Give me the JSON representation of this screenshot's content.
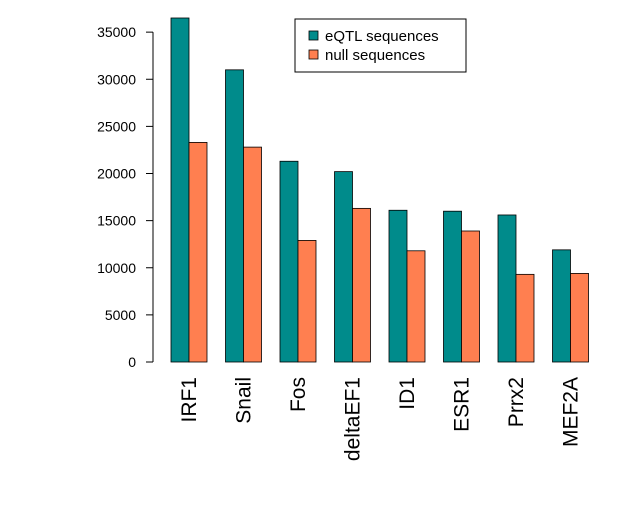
{
  "chart_data": {
    "type": "bar",
    "categories": [
      "IRF1",
      "Snail",
      "Fos",
      "deltaEF1",
      "ID1",
      "ESR1",
      "Prrx2",
      "MEF2A"
    ],
    "series": [
      {
        "name": "eQTL sequences",
        "color": "#008B8B",
        "values": [
          36500,
          31000,
          21300,
          20200,
          16100,
          16000,
          15600,
          11900
        ]
      },
      {
        "name": "null sequences",
        "color": "#FF7F50",
        "values": [
          23300,
          22800,
          12900,
          16300,
          11800,
          13900,
          9300,
          9400
        ]
      }
    ],
    "yticks": [
      0,
      5000,
      10000,
      15000,
      20000,
      25000,
      30000,
      35000
    ],
    "ylim": [
      0,
      36500
    ],
    "legend_position": "top-center",
    "grid": false
  }
}
